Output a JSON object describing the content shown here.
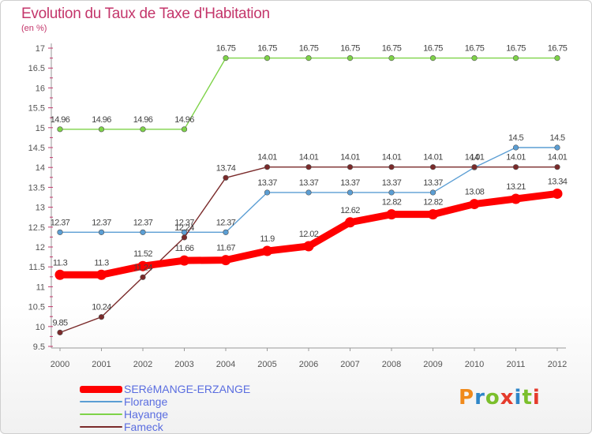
{
  "header": {
    "title": "Evolution du Taux de Taxe d'Habitation",
    "subtitle": "(en %)"
  },
  "logo": {
    "text": "Proxiti",
    "letter_colors": [
      "#f08a1c",
      "#2f86c8",
      "#7bbf2c",
      "#e53b2c",
      "#2f86c8",
      "#7bbf2c",
      "#e53b2c"
    ]
  },
  "chart_data": {
    "type": "line",
    "title": "Evolution du Taux de Taxe d'Habitation",
    "ylabel": "(en %)",
    "x": [
      "2000",
      "2001",
      "2002",
      "2003",
      "2004",
      "2005",
      "2006",
      "2007",
      "2008",
      "2009",
      "2010",
      "2011",
      "2012"
    ],
    "ylim": [
      9.5,
      17
    ],
    "yticks": [
      "9.5",
      "10",
      "10.5",
      "11",
      "11.5",
      "12",
      "12.5",
      "13",
      "13.5",
      "14",
      "14.5",
      "15",
      "15.5",
      "16",
      "16.5",
      "17"
    ],
    "grid": false,
    "legend_position": "bottom-left",
    "series": [
      {
        "name": "SERéMANGE-ERZANGE",
        "color": "#ff0000",
        "thick": true,
        "values": [
          11.3,
          11.3,
          11.52,
          11.66,
          11.67,
          11.9,
          12.02,
          12.62,
          12.82,
          12.82,
          13.08,
          13.21,
          13.34
        ],
        "labels": [
          "11.3",
          "11.3",
          "11.52",
          "11.66",
          "11.67",
          "11.9",
          "12.02",
          "12.62",
          "12.82",
          "12.82",
          "13.08",
          "13.21",
          "13.34"
        ]
      },
      {
        "name": "Florange",
        "color": "#5b9ed4",
        "thick": false,
        "values": [
          12.37,
          12.37,
          12.37,
          12.37,
          12.37,
          13.37,
          13.37,
          13.37,
          13.37,
          13.37,
          14.0,
          14.5,
          14.5
        ],
        "labels": [
          "12.37",
          "12.37",
          "12.37",
          "12.37",
          "12.37",
          "13.37",
          "13.37",
          "13.37",
          "13.37",
          "13.37",
          "14",
          "14.5",
          "14.5"
        ]
      },
      {
        "name": "Hayange",
        "color": "#7ed348",
        "thick": false,
        "values": [
          14.96,
          14.96,
          14.96,
          14.96,
          16.75,
          16.75,
          16.75,
          16.75,
          16.75,
          16.75,
          16.75,
          16.75,
          16.75
        ],
        "labels": [
          "14.96",
          "14.96",
          "14.96",
          "14.96",
          "16.75",
          "16.75",
          "16.75",
          "16.75",
          "16.75",
          "16.75",
          "16.75",
          "16.75",
          "16.75"
        ]
      },
      {
        "name": "Fameck",
        "color": "#7a2a2a",
        "thick": false,
        "values": [
          9.85,
          10.24,
          11.24,
          12.24,
          13.74,
          14.01,
          14.01,
          14.01,
          14.01,
          14.01,
          14.01,
          14.01,
          14.01
        ],
        "labels": [
          "9.85",
          "10.24",
          "11.24",
          "12.24",
          "13.74",
          "14.01",
          "14.01",
          "14.01",
          "14.01",
          "14.01",
          "14.01",
          "14.01",
          "14.01"
        ]
      }
    ]
  }
}
